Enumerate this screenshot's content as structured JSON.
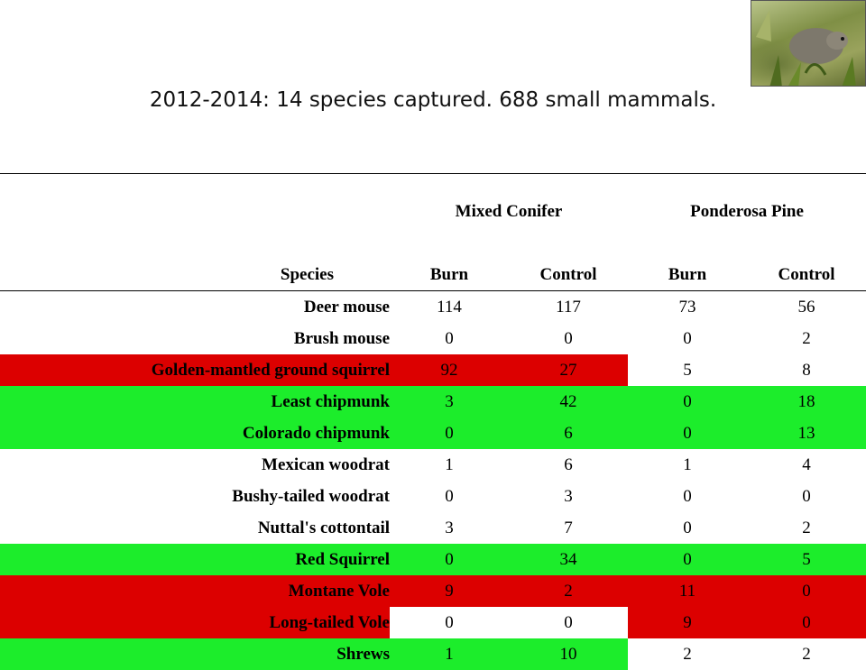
{
  "slide": {
    "title": "2012-2014: 14 species captured. 688 small mammals."
  },
  "photo": {
    "subject": "small mammal photo"
  },
  "table": {
    "group_headers": [
      "Mixed Conifer",
      "Ponderosa Pine"
    ],
    "columns": [
      "Species",
      "Burn",
      "Control",
      "Burn",
      "Control"
    ],
    "rows": [
      {
        "species": "Deer mouse",
        "values": [
          "114",
          "117",
          "73",
          "56"
        ],
        "row_color": "white",
        "cell_colors": [
          "white",
          "white",
          "white",
          "white"
        ]
      },
      {
        "species": "Brush mouse",
        "values": [
          "0",
          "0",
          "0",
          "2"
        ],
        "row_color": "white",
        "cell_colors": [
          "white",
          "white",
          "white",
          "white"
        ]
      },
      {
        "species": "Golden-mantled ground squirrel",
        "values": [
          "92",
          "27",
          "5",
          "8"
        ],
        "row_color": "red",
        "cell_colors": [
          "red",
          "red",
          "white",
          "white"
        ]
      },
      {
        "species": "Least chipmunk",
        "values": [
          "3",
          "42",
          "0",
          "18"
        ],
        "row_color": "green",
        "cell_colors": [
          "green",
          "green",
          "green",
          "green"
        ]
      },
      {
        "species": "Colorado chipmunk",
        "values": [
          "0",
          "6",
          "0",
          "13"
        ],
        "row_color": "green",
        "cell_colors": [
          "green",
          "green",
          "green",
          "green"
        ]
      },
      {
        "species": "Mexican woodrat",
        "values": [
          "1",
          "6",
          "1",
          "4"
        ],
        "row_color": "white",
        "cell_colors": [
          "white",
          "white",
          "white",
          "white"
        ]
      },
      {
        "species": "Bushy-tailed woodrat",
        "values": [
          "0",
          "3",
          "0",
          "0"
        ],
        "row_color": "white",
        "cell_colors": [
          "white",
          "white",
          "white",
          "white"
        ]
      },
      {
        "species": "Nuttal's cottontail",
        "values": [
          "3",
          "7",
          "0",
          "2"
        ],
        "row_color": "white",
        "cell_colors": [
          "white",
          "white",
          "white",
          "white"
        ]
      },
      {
        "species": "Red Squirrel",
        "values": [
          "0",
          "34",
          "0",
          "5"
        ],
        "row_color": "green",
        "cell_colors": [
          "green",
          "green",
          "green",
          "green"
        ]
      },
      {
        "species": "Montane Vole",
        "values": [
          "9",
          "2",
          "11",
          "0"
        ],
        "row_color": "red",
        "cell_colors": [
          "red",
          "red",
          "red",
          "red"
        ]
      },
      {
        "species": "Long-tailed Vole",
        "values": [
          "0",
          "0",
          "9",
          "0"
        ],
        "row_color": "red",
        "cell_colors": [
          "white",
          "white",
          "red",
          "red"
        ]
      },
      {
        "species": "Shrews",
        "values": [
          "1",
          "10",
          "2",
          "2"
        ],
        "row_color": "green",
        "cell_colors": [
          "green",
          "green",
          "white",
          "white"
        ]
      }
    ]
  },
  "colors": {
    "red": "#dc0000",
    "green": "#1ced2b",
    "white": "#ffffff"
  }
}
